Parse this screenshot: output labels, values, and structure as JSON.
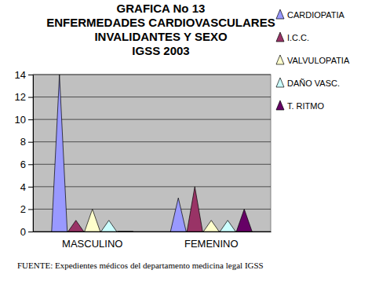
{
  "chart_data": {
    "type": "bar",
    "title": [
      "GRAFICA No 13",
      "ENFERMEDADES CARDIOVASCULARES",
      "INVALIDANTES Y SEXO",
      "IGSS 2003"
    ],
    "categories": [
      "MASCULINO",
      "FEMENINO"
    ],
    "series": [
      {
        "name": "CARDIOPATIA",
        "color": "#9999ff",
        "values": [
          14,
          3
        ]
      },
      {
        "name": "I.C.C.",
        "color": "#993366",
        "values": [
          1,
          4
        ]
      },
      {
        "name": "VALVULOPATIA",
        "color": "#ffffcc",
        "values": [
          2,
          1
        ]
      },
      {
        "name": "DAÑO VASC.",
        "color": "#ccffff",
        "values": [
          1,
          1
        ]
      },
      {
        "name": "T. RITMO",
        "color": "#660066",
        "values": [
          0,
          2
        ]
      }
    ],
    "ylim": [
      0,
      14
    ],
    "yticks": [
      0,
      2,
      4,
      6,
      8,
      10,
      12,
      14
    ],
    "grid": true,
    "legend": "right",
    "annotations": [
      "FUENTE: Expedientes médicos del departamento medicina legal IGSS"
    ]
  }
}
